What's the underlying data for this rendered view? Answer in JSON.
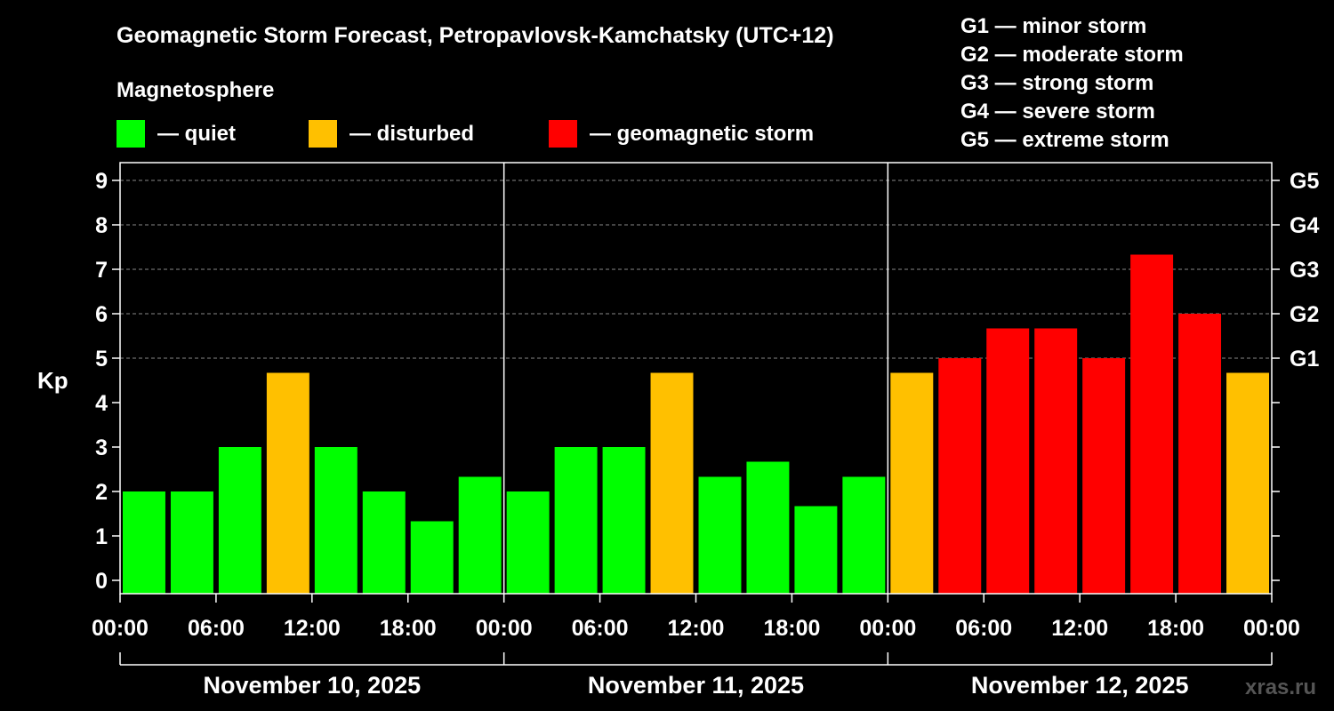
{
  "title": "Geomagnetic Storm Forecast, Petropavlovsk-Kamchatsky (UTC+12)",
  "legend": {
    "heading": "Magnetosphere",
    "items": [
      {
        "label": "— quiet",
        "color": "#00ff00"
      },
      {
        "label": "— disturbed",
        "color": "#ffc000"
      },
      {
        "label": "— geomagnetic storm",
        "color": "#ff0000"
      }
    ]
  },
  "storm_scale": [
    "G1 — minor storm",
    "G2 — moderate storm",
    "G3 — strong storm",
    "G4 — severe storm",
    "G5 — extreme storm"
  ],
  "watermark": "xras.ru",
  "chart_data": {
    "type": "bar",
    "ylabel": "Kp",
    "ylim": [
      -0.3,
      9.4
    ],
    "y_ticks": [
      0,
      1,
      2,
      3,
      4,
      5,
      6,
      7,
      8,
      9
    ],
    "right_axis": [
      {
        "value": 5,
        "label": "G1"
      },
      {
        "value": 6,
        "label": "G2"
      },
      {
        "value": 7,
        "label": "G3"
      },
      {
        "value": 8,
        "label": "G4"
      },
      {
        "value": 9,
        "label": "G5"
      }
    ],
    "grid": "horizontal dashed at 5, 6, 7, 8, 9",
    "x_tick_labels": [
      "00:00",
      "06:00",
      "12:00",
      "18:00",
      "00:00",
      "06:00",
      "12:00",
      "18:00",
      "00:00",
      "06:00",
      "12:00",
      "18:00",
      "00:00"
    ],
    "days": [
      "November 10, 2025",
      "November 11, 2025",
      "November 12, 2025"
    ],
    "categories": [
      "Nov 10 00-03",
      "Nov 10 03-06",
      "Nov 10 06-09",
      "Nov 10 09-12",
      "Nov 10 12-15",
      "Nov 10 15-18",
      "Nov 10 18-21",
      "Nov 10 21-24",
      "Nov 11 00-03",
      "Nov 11 03-06",
      "Nov 11 06-09",
      "Nov 11 09-12",
      "Nov 11 12-15",
      "Nov 11 15-18",
      "Nov 11 18-21",
      "Nov 11 21-24",
      "Nov 12 00-03",
      "Nov 12 03-06",
      "Nov 12 06-09",
      "Nov 12 09-12",
      "Nov 12 12-15",
      "Nov 12 15-18",
      "Nov 12 18-21",
      "Nov 12 21-24"
    ],
    "values": [
      2.0,
      2.0,
      3.0,
      4.67,
      3.0,
      2.0,
      1.33,
      2.33,
      2.0,
      3.0,
      3.0,
      4.67,
      2.33,
      2.67,
      1.67,
      2.33,
      4.67,
      5.0,
      5.67,
      5.67,
      5.0,
      7.33,
      6.0,
      4.67
    ],
    "levels": [
      "quiet",
      "quiet",
      "quiet",
      "disturbed",
      "quiet",
      "quiet",
      "quiet",
      "quiet",
      "quiet",
      "quiet",
      "quiet",
      "disturbed",
      "quiet",
      "quiet",
      "quiet",
      "quiet",
      "disturbed",
      "storm",
      "storm",
      "storm",
      "storm",
      "storm",
      "storm",
      "disturbed"
    ],
    "colors": {
      "quiet": "#00ff00",
      "disturbed": "#ffc000",
      "storm": "#ff0000"
    }
  }
}
